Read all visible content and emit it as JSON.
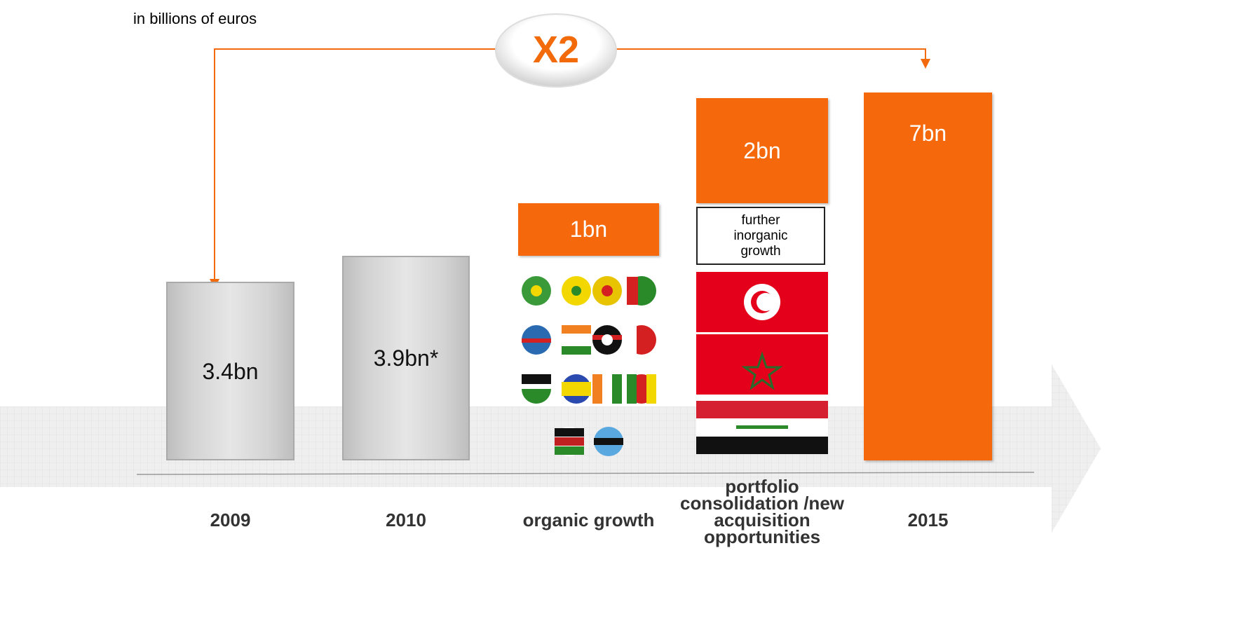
{
  "chart_data": {
    "type": "waterfall",
    "subtitle": "in billions of euros",
    "annotation": "X2",
    "note": "further inorganic growth",
    "categories": [
      "2009",
      "2010",
      "organic growth",
      "portfolio consolidation /new acquisition opportunities",
      "2015"
    ],
    "values": [
      3.4,
      3.9,
      1,
      2,
      7
    ],
    "value_labels": [
      "3.4bn",
      "3.9bn*",
      "1bn",
      "2bn",
      "7bn"
    ],
    "measures": [
      "total",
      "total",
      "relative",
      "relative",
      "total"
    ],
    "colors": [
      "#d3d3d3",
      "#d3d3d3",
      "#f5690c",
      "#f5690c",
      "#f5690c"
    ]
  }
}
